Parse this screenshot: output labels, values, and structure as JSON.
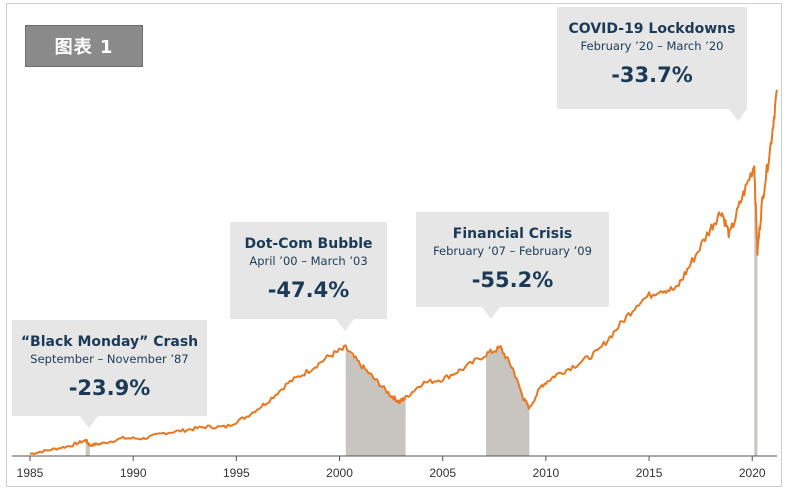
{
  "figure_label": "图表 1",
  "colors": {
    "line": "#e87722",
    "shade": "#c8c4bf",
    "callout_bg": "#e6e6e6",
    "callout_text": "#1b3a57",
    "label_bg": "#8a8a8a"
  },
  "callouts": [
    {
      "title": "“Black Monday” Crash",
      "dates": "September – November ’87",
      "pct": "-23.9%"
    },
    {
      "title": "Dot-Com Bubble",
      "dates": "April ’00 – March ’03",
      "pct": "-47.4%"
    },
    {
      "title": "Financial Crisis",
      "dates": "February ’07 – February ’09",
      "pct": "-55.2%"
    },
    {
      "title": "COVID-19 Lockdowns",
      "dates": "February ’20 – March ’20",
      "pct": "-33.7%"
    }
  ],
  "chart_data": {
    "type": "line",
    "title": "",
    "xlabel": "",
    "ylabel": "",
    "xlim": [
      1985,
      2021.2
    ],
    "ylim": [
      0,
      100
    ],
    "y_axis_shown": false,
    "x_ticks": [
      "1985",
      "1990",
      "1995",
      "2000",
      "2005",
      "2010",
      "2015",
      "2020"
    ],
    "shaded_periods": [
      {
        "start": 1987.7,
        "end": 1987.9
      },
      {
        "start": 2000.3,
        "end": 2003.2
      },
      {
        "start": 2007.1,
        "end": 2009.2
      },
      {
        "start": 2020.1,
        "end": 2020.25
      }
    ],
    "series": [
      {
        "points": [
          [
            1985.0,
            0.5
          ],
          [
            1986.0,
            1.5
          ],
          [
            1987.0,
            2.5
          ],
          [
            1987.7,
            3.8
          ],
          [
            1987.9,
            2.6
          ],
          [
            1988.5,
            3.0
          ],
          [
            1989.5,
            4.3
          ],
          [
            1990.5,
            4.2
          ],
          [
            1991.5,
            5.5
          ],
          [
            1992.5,
            6.2
          ],
          [
            1993.5,
            7.0
          ],
          [
            1994.5,
            7.0
          ],
          [
            1995.5,
            9.5
          ],
          [
            1996.5,
            13.0
          ],
          [
            1997.5,
            17.5
          ],
          [
            1998.5,
            20.5
          ],
          [
            1999.5,
            24.0
          ],
          [
            2000.3,
            26.0
          ],
          [
            2001.0,
            22.0
          ],
          [
            2001.8,
            18.0
          ],
          [
            2002.5,
            14.5
          ],
          [
            2002.9,
            13.0
          ],
          [
            2003.2,
            14.0
          ],
          [
            2004.0,
            17.5
          ],
          [
            2005.0,
            18.5
          ],
          [
            2006.0,
            21.0
          ],
          [
            2007.1,
            24.5
          ],
          [
            2007.8,
            26.0
          ],
          [
            2008.4,
            21.0
          ],
          [
            2008.9,
            14.0
          ],
          [
            2009.2,
            11.5
          ],
          [
            2009.8,
            17.0
          ],
          [
            2010.5,
            19.5
          ],
          [
            2011.5,
            22.0
          ],
          [
            2012.5,
            25.0
          ],
          [
            2013.5,
            31.0
          ],
          [
            2014.5,
            37.0
          ],
          [
            2015.5,
            40.0
          ],
          [
            2016.3,
            40.0
          ],
          [
            2017.0,
            46.0
          ],
          [
            2017.9,
            54.0
          ],
          [
            2018.5,
            59.0
          ],
          [
            2018.9,
            53.0
          ],
          [
            2019.5,
            62.0
          ],
          [
            2020.1,
            70.0
          ],
          [
            2020.25,
            49.0
          ],
          [
            2020.5,
            62.0
          ],
          [
            2020.9,
            75.0
          ],
          [
            2021.2,
            88.0
          ]
        ]
      }
    ]
  }
}
